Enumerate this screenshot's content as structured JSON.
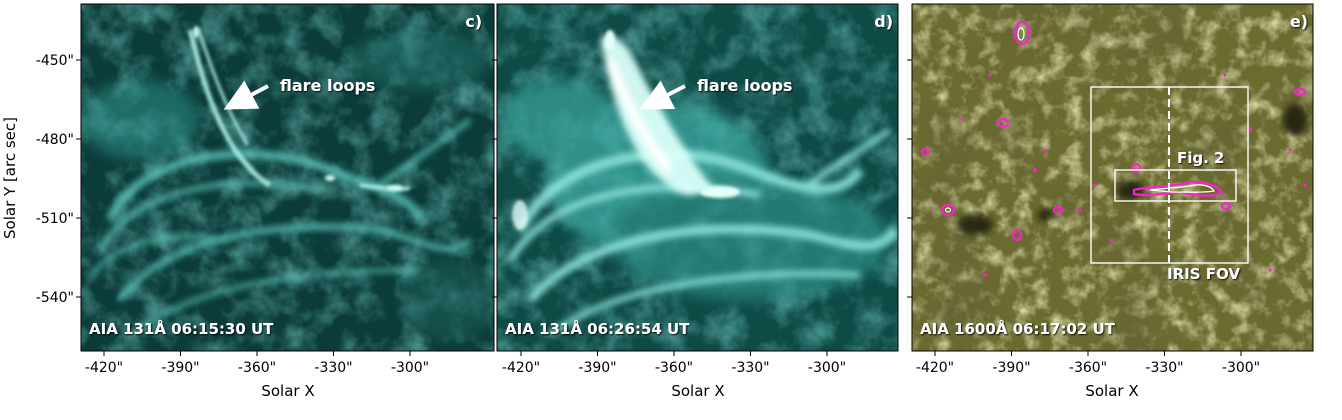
{
  "axes": {
    "x_title": "Solar X",
    "y_title": "Solar Y [arc sec]",
    "x_ticks": [
      "-420\"",
      "-390\"",
      "-360\"",
      "-330\"",
      "-300\""
    ],
    "y_ticks": [
      "-450\"",
      "-480\"",
      "-510\"",
      "-540\""
    ]
  },
  "panels": [
    {
      "label": "c)",
      "caption": "AIA 131Å 06:15:30 UT",
      "annotation": "flare loops"
    },
    {
      "label": "d)",
      "caption": "AIA 131Å 06:26:54 UT",
      "annotation": "flare loops"
    },
    {
      "label": "e)",
      "caption": "AIA 1600Å 06:17:02 UT",
      "box_labels": [
        "Fig. 2",
        "IRIS FOV"
      ]
    }
  ],
  "colors": {
    "aia131_dark": "#0b3c39",
    "aia131_mid": "#2d8e86",
    "aia131_bright": "#dffffa",
    "aia1600_dark": "#383612",
    "aia1600_mid": "#8a8a45",
    "aia1600_bright": "#efefc8",
    "contour_outer": "#ff1fd2",
    "contour_inner": "#ffffff",
    "annotation": "#ffffff"
  }
}
